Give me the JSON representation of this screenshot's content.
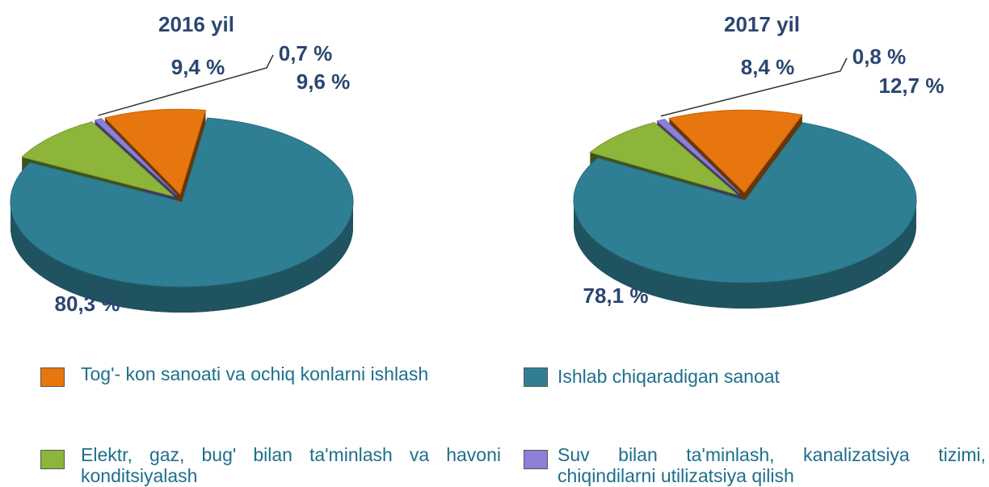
{
  "chart_data": [
    {
      "type": "pie",
      "title": "2016 yil",
      "values": [
        9.6,
        80.3,
        9.4,
        0.7
      ],
      "value_labels": [
        "9,6 %",
        "80,3 %",
        "9,4 %",
        "0,7 %"
      ]
    },
    {
      "type": "pie",
      "title": "2017 yil",
      "values": [
        12.7,
        78.1,
        8.4,
        0.8
      ],
      "value_labels": [
        "12,7 %",
        "78,1 %",
        "8,4 %",
        "0,8 %"
      ]
    }
  ],
  "legend": {
    "categories": [
      "Tog'- kon sanoati va ochiq konlarni ishlash",
      "Ishlab chiqaradigan sanoat",
      "Elektr, gaz, bug'  bilan ta'minlash va havoni konditsiyalash",
      "Suv bilan ta'minlash, kanalizatsiya tizimi, chiqindilarni utilizatsiya qilish"
    ],
    "colors": [
      "#e8760e",
      "#2f7f94",
      "#8db53a",
      "#8c80d8"
    ]
  }
}
